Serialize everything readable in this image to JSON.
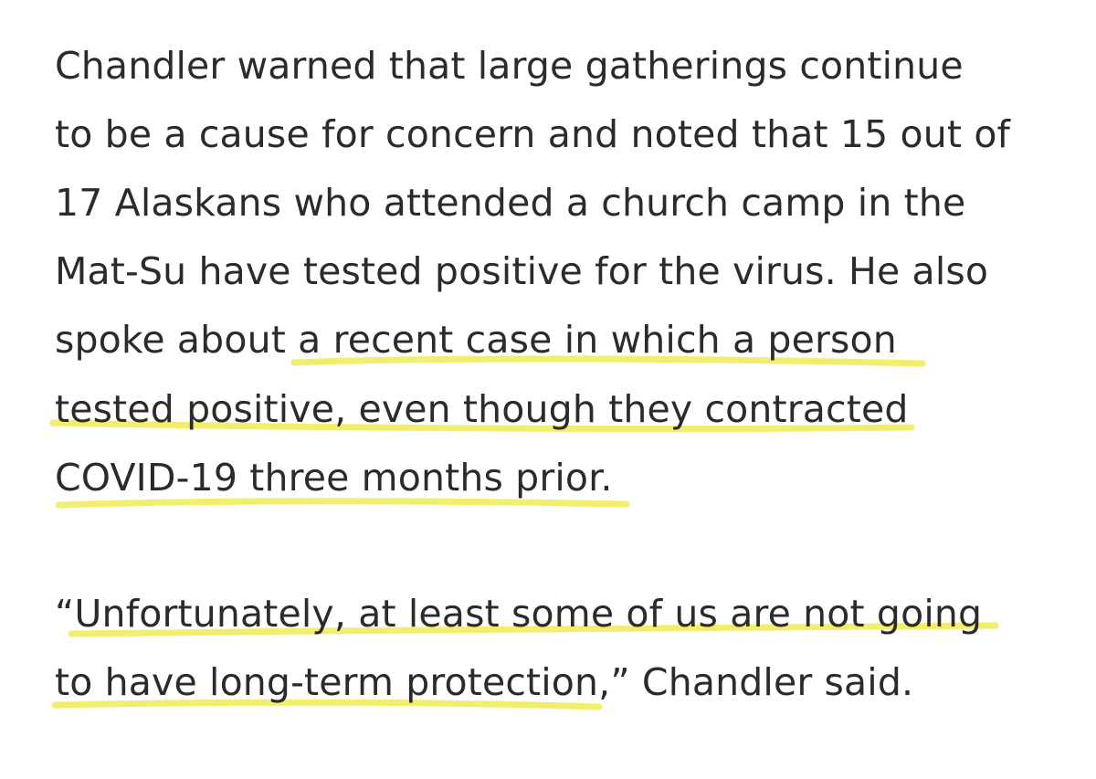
{
  "article": {
    "paragraphs": [
      {
        "lines": [
          "Chandler warned that large gatherings continue",
          "to be a cause for concern and noted that 15 out of",
          "17 Alaskans who attended a church camp in the",
          "Mat-Su have tested positive for the virus. He also",
          "spoke about a recent case in which a person",
          "tested positive, even though they contracted",
          "COVID-19 three months prior."
        ]
      },
      {
        "lines": [
          "“Unfortunately, at least some of us are not going",
          "to have long-term protection,” Chandler said."
        ]
      }
    ]
  },
  "highlight": {
    "color": "#f2ee6e",
    "underlined_text": [
      "a recent case in which a person tested positive, even though they contracted COVID-19 three months prior.",
      "Unfortunately, at least some of us are not going to have long-term protection,"
    ]
  }
}
